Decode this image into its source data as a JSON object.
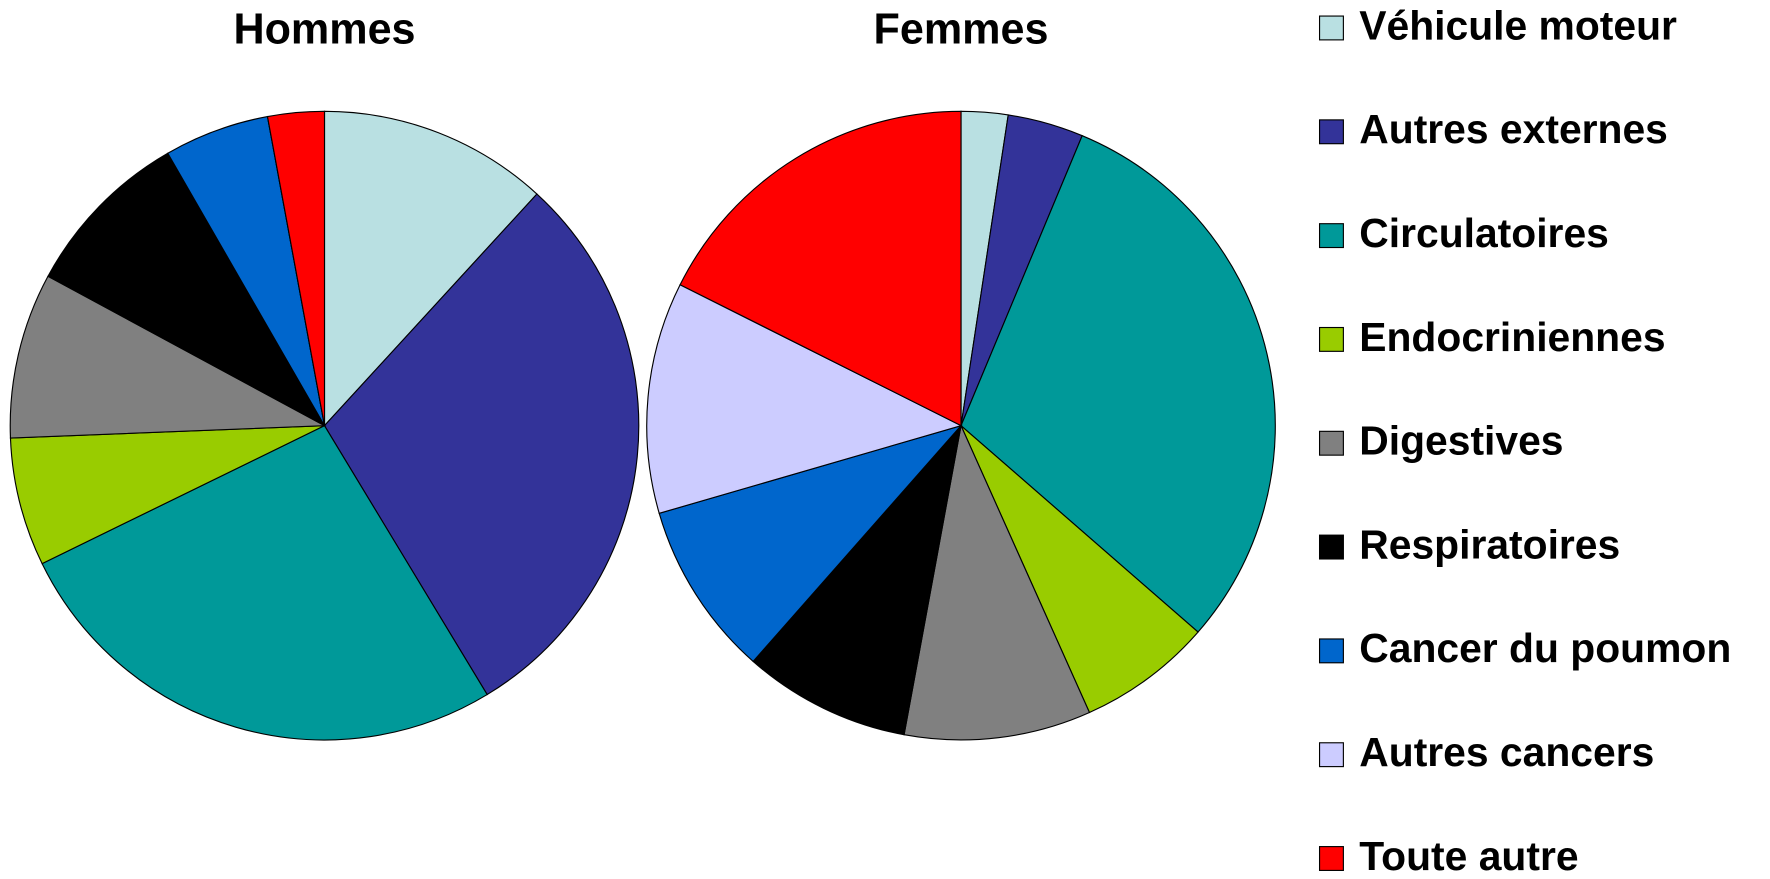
{
  "chart_data": [
    {
      "type": "pie",
      "title": "Hommes",
      "categories": [
        "Véhicule moteur",
        "Autres externes",
        "Circulatoires",
        "Endocriniennes",
        "Digestives",
        "Respiratoires",
        "Cancer du poumon",
        "Autres cancers",
        "Toute autre"
      ],
      "values": [
        11.8,
        29.5,
        26.4,
        6.6,
        8.5,
        8.8,
        5.4,
        0,
        2.9
      ],
      "colors": [
        "#b9e0e2",
        "#333399",
        "#009999",
        "#99cc00",
        "#808080",
        "#000000",
        "#0066cc",
        "#ccccff",
        "#ff0000"
      ]
    },
    {
      "type": "pie",
      "title": "Femmes",
      "categories": [
        "Véhicule moteur",
        "Autres externes",
        "Circulatoires",
        "Endocriniennes",
        "Digestives",
        "Respiratoires",
        "Cancer du poumon",
        "Autres cancers",
        "Toute autre"
      ],
      "values": [
        2.4,
        3.9,
        30.1,
        6.9,
        9.6,
        8.6,
        9.0,
        11.9,
        17.6
      ],
      "colors": [
        "#b9e0e2",
        "#333399",
        "#009999",
        "#99cc00",
        "#808080",
        "#000000",
        "#0066cc",
        "#ccccff",
        "#ff0000"
      ]
    }
  ]
}
